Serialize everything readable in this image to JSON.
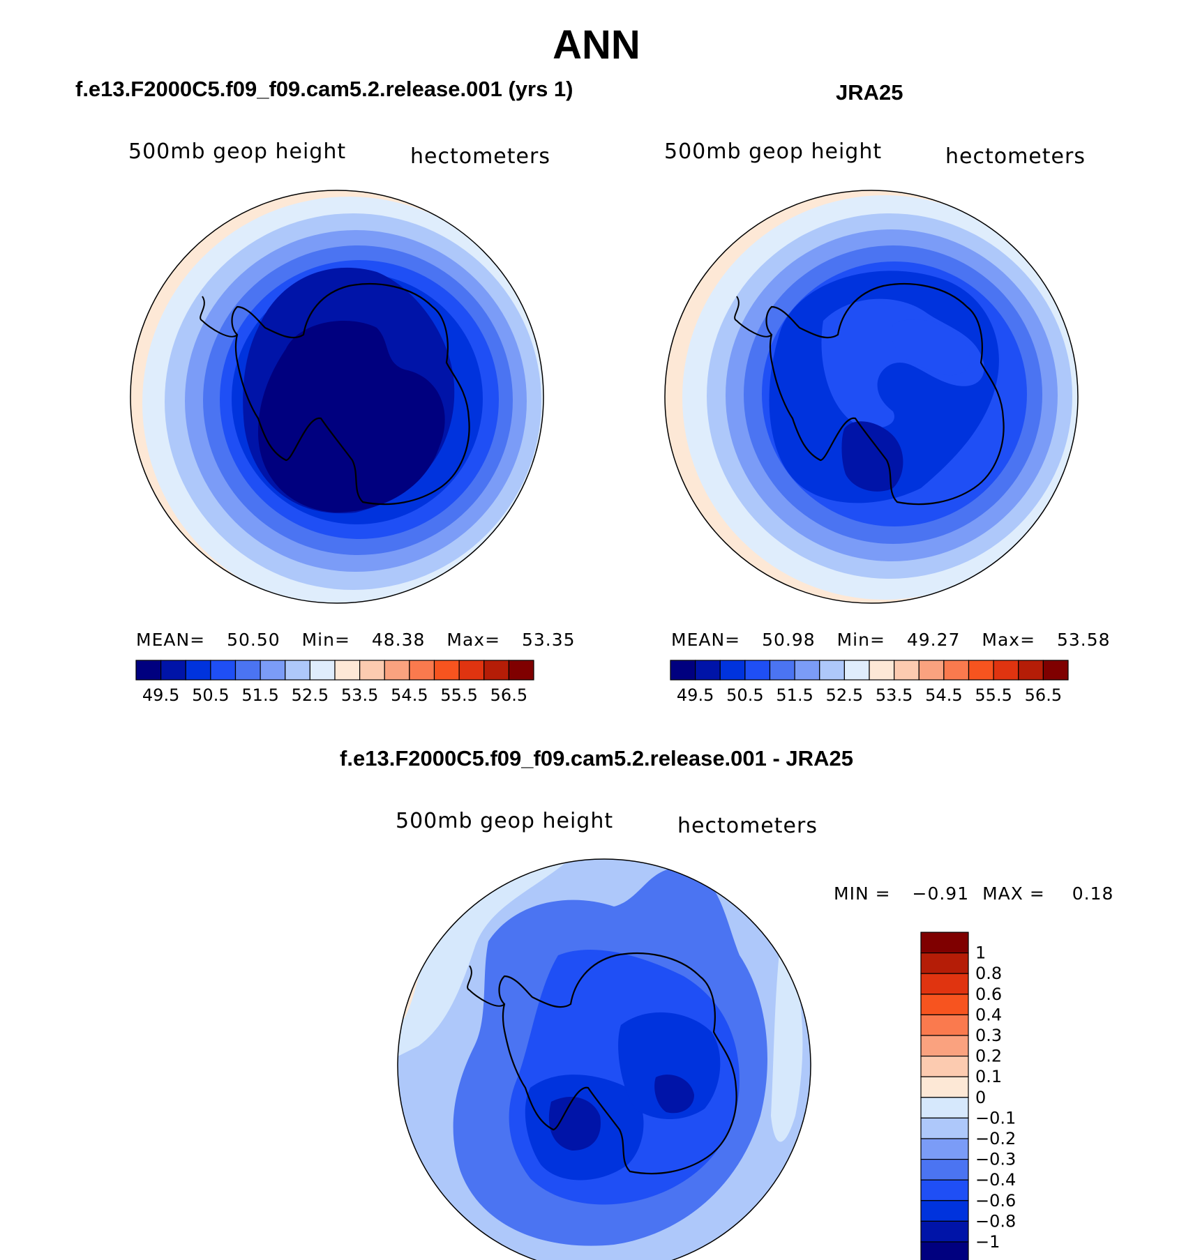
{
  "page": {
    "title": "ANN",
    "diff_title": "f.e13.F2000C5.f09_f09.cam5.2.release.001 - JRA25"
  },
  "colors": {
    "abs_scale": [
      "#00007f",
      "#0014a8",
      "#0033dd",
      "#1f4ff5",
      "#4b74f2",
      "#7b9cf7",
      "#aec8fa",
      "#dfedfc",
      "#fde8d6",
      "#fccbb0",
      "#faa27f",
      "#fa7a4e",
      "#f7541f",
      "#e03410",
      "#b51d07",
      "#7f0000"
    ],
    "diff_scale": [
      "#00007f",
      "#0014a8",
      "#0033dd",
      "#1f4ff5",
      "#4b74f2",
      "#7b9cf7",
      "#aec8fa",
      "#d6e8fc",
      "#fde8d6",
      "#fccbb0",
      "#faa27f",
      "#fa7a4e",
      "#f7541f",
      "#e03410",
      "#b51d07",
      "#7f0000"
    ]
  },
  "panels": {
    "model": {
      "header": "f.e13.F2000C5.f09_f09.cam5.2.release.001 (yrs 1)",
      "left_label": "500mb geop height",
      "right_label": "hectometers",
      "stats": {
        "mean_label": "MEAN=",
        "mean": "50.50",
        "min_label": "Min=",
        "min": "48.38",
        "max_label": "Max=",
        "max": "53.35"
      },
      "colorbar_labels": [
        "49.5",
        "50.5",
        "51.5",
        "52.5",
        "53.5",
        "54.5",
        "55.5",
        "56.5"
      ]
    },
    "obs": {
      "header": "JRA25",
      "left_label": "500mb geop height",
      "right_label": "hectometers",
      "stats": {
        "mean_label": "MEAN=",
        "mean": "50.98",
        "min_label": "Min=",
        "min": "49.27",
        "max_label": "Max=",
        "max": "53.58"
      },
      "colorbar_labels": [
        "49.5",
        "50.5",
        "51.5",
        "52.5",
        "53.5",
        "54.5",
        "55.5",
        "56.5"
      ]
    },
    "diff": {
      "left_label": "500mb geop height",
      "right_label": "hectometers",
      "stats": {
        "min_label": "MIN =",
        "min": "−0.91",
        "max_label": "MAX =",
        "max": "0.18"
      },
      "colorbar_labels": [
        "1",
        "0.8",
        "0.6",
        "0.4",
        "0.3",
        "0.2",
        "0.1",
        "0",
        "−0.1",
        "−0.2",
        "−0.3",
        "−0.4",
        "−0.6",
        "−0.8",
        "−1"
      ]
    }
  }
}
